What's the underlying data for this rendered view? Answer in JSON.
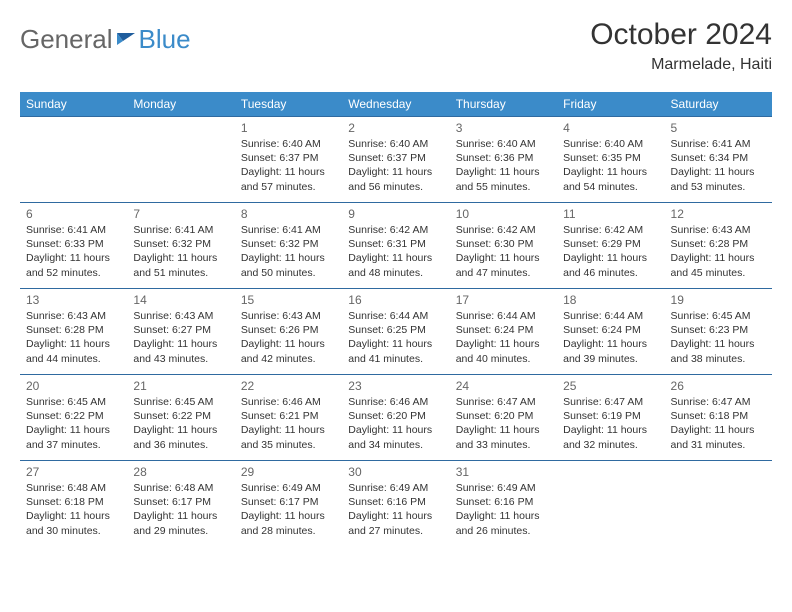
{
  "logo": {
    "text1": "General",
    "text2": "Blue"
  },
  "title": "October 2024",
  "location": "Marmelade, Haiti",
  "colors": {
    "header_bg": "#3b8bc9",
    "header_text": "#ffffff",
    "row_border": "#2f6aa0",
    "daynum_color": "#666666",
    "text_color": "#333333",
    "logo_gray": "#666666",
    "logo_blue": "#3b8bc9",
    "background": "#ffffff"
  },
  "typography": {
    "title_fontsize": 30,
    "location_fontsize": 16,
    "dayheader_fontsize": 12,
    "daynum_fontsize": 12,
    "cell_fontsize": 10.5
  },
  "day_headers": [
    "Sunday",
    "Monday",
    "Tuesday",
    "Wednesday",
    "Thursday",
    "Friday",
    "Saturday"
  ],
  "weeks": [
    [
      null,
      null,
      {
        "n": "1",
        "sr": "6:40 AM",
        "ss": "6:37 PM",
        "dl": "11 hours and 57 minutes."
      },
      {
        "n": "2",
        "sr": "6:40 AM",
        "ss": "6:37 PM",
        "dl": "11 hours and 56 minutes."
      },
      {
        "n": "3",
        "sr": "6:40 AM",
        "ss": "6:36 PM",
        "dl": "11 hours and 55 minutes."
      },
      {
        "n": "4",
        "sr": "6:40 AM",
        "ss": "6:35 PM",
        "dl": "11 hours and 54 minutes."
      },
      {
        "n": "5",
        "sr": "6:41 AM",
        "ss": "6:34 PM",
        "dl": "11 hours and 53 minutes."
      }
    ],
    [
      {
        "n": "6",
        "sr": "6:41 AM",
        "ss": "6:33 PM",
        "dl": "11 hours and 52 minutes."
      },
      {
        "n": "7",
        "sr": "6:41 AM",
        "ss": "6:32 PM",
        "dl": "11 hours and 51 minutes."
      },
      {
        "n": "8",
        "sr": "6:41 AM",
        "ss": "6:32 PM",
        "dl": "11 hours and 50 minutes."
      },
      {
        "n": "9",
        "sr": "6:42 AM",
        "ss": "6:31 PM",
        "dl": "11 hours and 48 minutes."
      },
      {
        "n": "10",
        "sr": "6:42 AM",
        "ss": "6:30 PM",
        "dl": "11 hours and 47 minutes."
      },
      {
        "n": "11",
        "sr": "6:42 AM",
        "ss": "6:29 PM",
        "dl": "11 hours and 46 minutes."
      },
      {
        "n": "12",
        "sr": "6:43 AM",
        "ss": "6:28 PM",
        "dl": "11 hours and 45 minutes."
      }
    ],
    [
      {
        "n": "13",
        "sr": "6:43 AM",
        "ss": "6:28 PM",
        "dl": "11 hours and 44 minutes."
      },
      {
        "n": "14",
        "sr": "6:43 AM",
        "ss": "6:27 PM",
        "dl": "11 hours and 43 minutes."
      },
      {
        "n": "15",
        "sr": "6:43 AM",
        "ss": "6:26 PM",
        "dl": "11 hours and 42 minutes."
      },
      {
        "n": "16",
        "sr": "6:44 AM",
        "ss": "6:25 PM",
        "dl": "11 hours and 41 minutes."
      },
      {
        "n": "17",
        "sr": "6:44 AM",
        "ss": "6:24 PM",
        "dl": "11 hours and 40 minutes."
      },
      {
        "n": "18",
        "sr": "6:44 AM",
        "ss": "6:24 PM",
        "dl": "11 hours and 39 minutes."
      },
      {
        "n": "19",
        "sr": "6:45 AM",
        "ss": "6:23 PM",
        "dl": "11 hours and 38 minutes."
      }
    ],
    [
      {
        "n": "20",
        "sr": "6:45 AM",
        "ss": "6:22 PM",
        "dl": "11 hours and 37 minutes."
      },
      {
        "n": "21",
        "sr": "6:45 AM",
        "ss": "6:22 PM",
        "dl": "11 hours and 36 minutes."
      },
      {
        "n": "22",
        "sr": "6:46 AM",
        "ss": "6:21 PM",
        "dl": "11 hours and 35 minutes."
      },
      {
        "n": "23",
        "sr": "6:46 AM",
        "ss": "6:20 PM",
        "dl": "11 hours and 34 minutes."
      },
      {
        "n": "24",
        "sr": "6:47 AM",
        "ss": "6:20 PM",
        "dl": "11 hours and 33 minutes."
      },
      {
        "n": "25",
        "sr": "6:47 AM",
        "ss": "6:19 PM",
        "dl": "11 hours and 32 minutes."
      },
      {
        "n": "26",
        "sr": "6:47 AM",
        "ss": "6:18 PM",
        "dl": "11 hours and 31 minutes."
      }
    ],
    [
      {
        "n": "27",
        "sr": "6:48 AM",
        "ss": "6:18 PM",
        "dl": "11 hours and 30 minutes."
      },
      {
        "n": "28",
        "sr": "6:48 AM",
        "ss": "6:17 PM",
        "dl": "11 hours and 29 minutes."
      },
      {
        "n": "29",
        "sr": "6:49 AM",
        "ss": "6:17 PM",
        "dl": "11 hours and 28 minutes."
      },
      {
        "n": "30",
        "sr": "6:49 AM",
        "ss": "6:16 PM",
        "dl": "11 hours and 27 minutes."
      },
      {
        "n": "31",
        "sr": "6:49 AM",
        "ss": "6:16 PM",
        "dl": "11 hours and 26 minutes."
      },
      null,
      null
    ]
  ],
  "labels": {
    "sunrise": "Sunrise:",
    "sunset": "Sunset:",
    "daylight": "Daylight:"
  }
}
